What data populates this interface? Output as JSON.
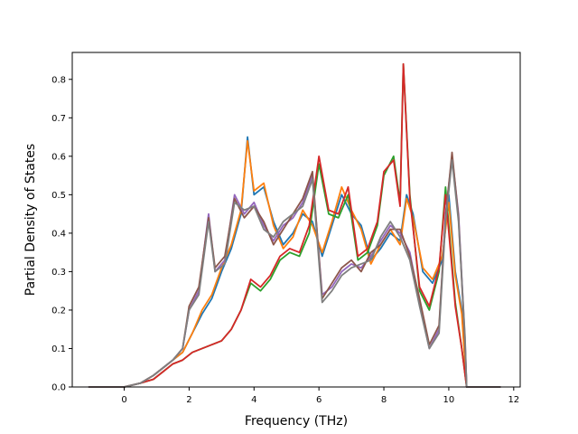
{
  "chart_data": {
    "type": "line",
    "title": "",
    "xlabel": "Frequency (THz)",
    "ylabel": "Partial Density of States",
    "xlim": [
      -1.6,
      12.2
    ],
    "ylim": [
      0.0,
      0.87
    ],
    "xticks": [
      0,
      2,
      4,
      6,
      8,
      10,
      12
    ],
    "xtick_labels": [
      "0",
      "2",
      "4",
      "6",
      "8",
      "10",
      "12"
    ],
    "yticks": [
      0.0,
      0.1,
      0.2,
      0.3,
      0.4,
      0.5,
      0.6,
      0.7,
      0.8
    ],
    "ytick_labels": [
      "0.0",
      "0.1",
      "0.2",
      "0.3",
      "0.4",
      "0.5",
      "0.6",
      "0.7",
      "0.8"
    ],
    "grid": false,
    "legend": "none",
    "series": [
      {
        "color": "#1f77b4",
        "x": [
          -1.1,
          0.0,
          0.5,
          0.9,
          1.2,
          1.5,
          1.8,
          2.1,
          2.4,
          2.7,
          3.0,
          3.3,
          3.6,
          3.8,
          4.0,
          4.3,
          4.6,
          4.9,
          5.2,
          5.5,
          5.8,
          6.1,
          6.4,
          6.7,
          7.0,
          7.3,
          7.6,
          7.9,
          8.2,
          8.5,
          8.7,
          8.9,
          9.2,
          9.5,
          9.8,
          10.0,
          10.2,
          10.4,
          10.55,
          11.6
        ],
        "y": [
          0.0,
          0.0,
          0.01,
          0.03,
          0.05,
          0.07,
          0.09,
          0.14,
          0.19,
          0.23,
          0.3,
          0.36,
          0.45,
          0.65,
          0.5,
          0.52,
          0.43,
          0.37,
          0.4,
          0.45,
          0.43,
          0.34,
          0.42,
          0.5,
          0.45,
          0.42,
          0.33,
          0.36,
          0.4,
          0.38,
          0.5,
          0.45,
          0.3,
          0.27,
          0.33,
          0.5,
          0.3,
          0.2,
          0.0,
          0.0
        ]
      },
      {
        "color": "#ff7f0e",
        "x": [
          -1.1,
          0.0,
          0.5,
          0.9,
          1.2,
          1.5,
          1.8,
          2.1,
          2.4,
          2.7,
          3.0,
          3.3,
          3.6,
          3.8,
          4.0,
          4.3,
          4.6,
          4.9,
          5.2,
          5.5,
          5.8,
          6.1,
          6.4,
          6.7,
          7.0,
          7.3,
          7.6,
          7.9,
          8.2,
          8.5,
          8.7,
          8.9,
          9.2,
          9.5,
          9.8,
          10.0,
          10.2,
          10.4,
          10.55,
          11.6
        ],
        "y": [
          0.0,
          0.0,
          0.01,
          0.03,
          0.05,
          0.07,
          0.09,
          0.14,
          0.2,
          0.24,
          0.31,
          0.37,
          0.46,
          0.64,
          0.51,
          0.53,
          0.42,
          0.36,
          0.39,
          0.46,
          0.42,
          0.35,
          0.43,
          0.52,
          0.46,
          0.41,
          0.32,
          0.37,
          0.41,
          0.37,
          0.49,
          0.44,
          0.31,
          0.28,
          0.34,
          0.48,
          0.29,
          0.19,
          0.0,
          0.0
        ]
      },
      {
        "color": "#2ca02c",
        "x": [
          -1.1,
          0.0,
          0.5,
          0.9,
          1.2,
          1.5,
          1.8,
          2.1,
          2.4,
          2.7,
          3.0,
          3.3,
          3.6,
          3.9,
          4.2,
          4.5,
          4.8,
          5.1,
          5.4,
          5.7,
          6.0,
          6.3,
          6.6,
          6.9,
          7.2,
          7.5,
          7.8,
          8.0,
          8.3,
          8.5,
          8.6,
          8.8,
          9.1,
          9.4,
          9.7,
          9.9,
          10.2,
          10.4,
          10.55,
          11.6
        ],
        "y": [
          0.0,
          0.0,
          0.01,
          0.02,
          0.04,
          0.06,
          0.07,
          0.09,
          0.1,
          0.11,
          0.12,
          0.15,
          0.2,
          0.27,
          0.25,
          0.28,
          0.33,
          0.35,
          0.34,
          0.4,
          0.58,
          0.45,
          0.44,
          0.5,
          0.33,
          0.35,
          0.42,
          0.55,
          0.6,
          0.48,
          0.84,
          0.5,
          0.25,
          0.2,
          0.3,
          0.52,
          0.22,
          0.1,
          0.0,
          0.0
        ]
      },
      {
        "color": "#d62728",
        "x": [
          -1.1,
          0.0,
          0.5,
          0.9,
          1.2,
          1.5,
          1.8,
          2.1,
          2.4,
          2.7,
          3.0,
          3.3,
          3.6,
          3.9,
          4.2,
          4.5,
          4.8,
          5.1,
          5.4,
          5.7,
          6.0,
          6.3,
          6.6,
          6.9,
          7.2,
          7.5,
          7.8,
          8.0,
          8.3,
          8.5,
          8.6,
          8.8,
          9.1,
          9.4,
          9.7,
          9.9,
          10.2,
          10.4,
          10.55,
          11.6
        ],
        "y": [
          0.0,
          0.0,
          0.01,
          0.02,
          0.04,
          0.06,
          0.07,
          0.09,
          0.1,
          0.11,
          0.12,
          0.15,
          0.2,
          0.28,
          0.26,
          0.29,
          0.34,
          0.36,
          0.35,
          0.42,
          0.6,
          0.46,
          0.45,
          0.52,
          0.34,
          0.36,
          0.43,
          0.56,
          0.59,
          0.47,
          0.84,
          0.49,
          0.26,
          0.21,
          0.31,
          0.5,
          0.21,
          0.1,
          0.0,
          0.0
        ]
      },
      {
        "color": "#9467bd",
        "x": [
          -1.1,
          0.0,
          0.5,
          0.9,
          1.2,
          1.5,
          1.8,
          2.0,
          2.3,
          2.6,
          2.8,
          3.1,
          3.4,
          3.7,
          4.0,
          4.3,
          4.6,
          4.9,
          5.2,
          5.5,
          5.8,
          6.1,
          6.4,
          6.7,
          7.0,
          7.3,
          7.6,
          7.9,
          8.2,
          8.5,
          8.8,
          9.1,
          9.4,
          9.7,
          9.9,
          10.1,
          10.3,
          10.5,
          10.55,
          11.6
        ],
        "y": [
          0.0,
          0.0,
          0.01,
          0.03,
          0.05,
          0.07,
          0.1,
          0.2,
          0.25,
          0.45,
          0.3,
          0.33,
          0.5,
          0.45,
          0.48,
          0.42,
          0.38,
          0.42,
          0.44,
          0.48,
          0.55,
          0.24,
          0.26,
          0.3,
          0.32,
          0.31,
          0.34,
          0.38,
          0.42,
          0.4,
          0.35,
          0.22,
          0.1,
          0.15,
          0.45,
          0.6,
          0.45,
          0.12,
          0.0,
          0.0
        ]
      },
      {
        "color": "#8c564b",
        "x": [
          -1.1,
          0.0,
          0.5,
          0.9,
          1.2,
          1.5,
          1.8,
          2.0,
          2.3,
          2.6,
          2.8,
          3.1,
          3.4,
          3.7,
          4.0,
          4.3,
          4.6,
          4.9,
          5.2,
          5.5,
          5.8,
          6.1,
          6.4,
          6.7,
          7.0,
          7.3,
          7.6,
          7.9,
          8.2,
          8.5,
          8.8,
          9.1,
          9.4,
          9.7,
          9.9,
          10.1,
          10.3,
          10.5,
          10.55,
          11.6
        ],
        "y": [
          0.0,
          0.0,
          0.01,
          0.03,
          0.05,
          0.07,
          0.1,
          0.21,
          0.26,
          0.44,
          0.31,
          0.34,
          0.49,
          0.44,
          0.47,
          0.43,
          0.37,
          0.41,
          0.45,
          0.49,
          0.56,
          0.23,
          0.27,
          0.31,
          0.33,
          0.3,
          0.35,
          0.37,
          0.41,
          0.41,
          0.34,
          0.23,
          0.11,
          0.16,
          0.44,
          0.61,
          0.44,
          0.11,
          0.0,
          0.0
        ]
      },
      {
        "color": "#7f7f7f",
        "x": [
          -1.1,
          0.0,
          0.5,
          0.9,
          1.2,
          1.5,
          1.8,
          2.0,
          2.3,
          2.6,
          2.8,
          3.1,
          3.4,
          3.7,
          4.0,
          4.3,
          4.6,
          4.9,
          5.2,
          5.5,
          5.8,
          6.1,
          6.4,
          6.7,
          7.0,
          7.3,
          7.6,
          7.9,
          8.2,
          8.5,
          8.8,
          9.1,
          9.4,
          9.7,
          9.9,
          10.1,
          10.3,
          10.5,
          10.55,
          11.6
        ],
        "y": [
          0.0,
          0.0,
          0.01,
          0.03,
          0.05,
          0.07,
          0.1,
          0.2,
          0.24,
          0.43,
          0.3,
          0.32,
          0.48,
          0.46,
          0.47,
          0.41,
          0.39,
          0.43,
          0.45,
          0.47,
          0.54,
          0.22,
          0.25,
          0.29,
          0.31,
          0.32,
          0.33,
          0.39,
          0.43,
          0.39,
          0.33,
          0.21,
          0.1,
          0.14,
          0.43,
          0.59,
          0.43,
          0.13,
          0.0,
          0.0
        ]
      }
    ]
  }
}
